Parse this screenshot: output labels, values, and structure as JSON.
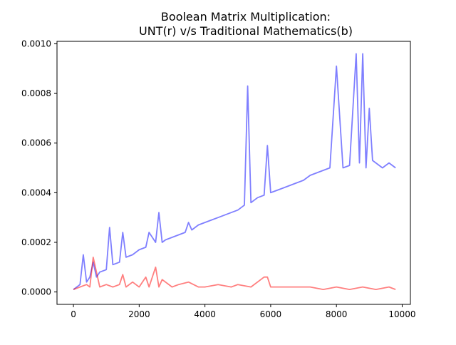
{
  "chart_data": {
    "type": "line",
    "title": "Boolean Matrix Multiplication:\nUNT(r) v/s Traditional Mathematics(b)",
    "xlabel": "",
    "ylabel": "",
    "xlim": [
      -500,
      10250
    ],
    "ylim": [
      -5e-05,
      0.00101
    ],
    "x_ticks": [
      0,
      2000,
      4000,
      6000,
      8000,
      10000
    ],
    "x_tick_labels": [
      "0",
      "2000",
      "4000",
      "6000",
      "8000",
      "10000"
    ],
    "y_ticks": [
      0.0,
      0.0002,
      0.0004,
      0.0006,
      0.0008,
      0.001
    ],
    "y_tick_labels": [
      "0.0000",
      "0.0002",
      "0.0004",
      "0.0006",
      "0.0008",
      "0.0010"
    ],
    "grid": false,
    "legend": "none",
    "series": [
      {
        "color": "#0000ff",
        "opacity": 0.5,
        "x": [
          0,
          200,
          300,
          400,
          500,
          600,
          700,
          800,
          1000,
          1100,
          1200,
          1400,
          1500,
          1600,
          1800,
          2000,
          2200,
          2300,
          2500,
          2600,
          2700,
          2800,
          3000,
          3200,
          3400,
          3500,
          3600,
          3800,
          4000,
          4200,
          4400,
          4600,
          4800,
          5000,
          5200,
          5300,
          5400,
          5500,
          5600,
          5800,
          5900,
          6000,
          6200,
          6400,
          6600,
          6800,
          7000,
          7200,
          7400,
          7600,
          7800,
          8000,
          8200,
          8400,
          8600,
          8700,
          8800,
          8900,
          9000,
          9100,
          9200,
          9400,
          9600,
          9800
        ],
        "y": [
          1e-05,
          3e-05,
          0.00015,
          4e-05,
          6e-05,
          0.00012,
          6e-05,
          8e-05,
          9e-05,
          0.00026,
          0.00011,
          0.00012,
          0.00024,
          0.00014,
          0.00015,
          0.00017,
          0.00018,
          0.00024,
          0.0002,
          0.00032,
          0.0002,
          0.00021,
          0.00022,
          0.00023,
          0.00024,
          0.00028,
          0.00025,
          0.00027,
          0.00028,
          0.00029,
          0.0003,
          0.00031,
          0.00032,
          0.00033,
          0.00035,
          0.00083,
          0.00036,
          0.00037,
          0.00038,
          0.00039,
          0.00059,
          0.0004,
          0.00041,
          0.00042,
          0.00043,
          0.00044,
          0.00045,
          0.00047,
          0.00048,
          0.00049,
          0.0005,
          0.00091,
          0.0005,
          0.00051,
          0.00096,
          0.00052,
          0.00096,
          0.0005,
          0.00074,
          0.00053,
          0.00052,
          0.0005,
          0.00052,
          0.0005
        ]
      },
      {
        "color": "#ff0000",
        "opacity": 0.5,
        "x": [
          0,
          200,
          400,
          500,
          600,
          800,
          1000,
          1200,
          1400,
          1500,
          1600,
          1800,
          2000,
          2200,
          2300,
          2500,
          2600,
          2700,
          3000,
          3200,
          3500,
          3800,
          4000,
          4400,
          4800,
          5000,
          5400,
          5800,
          5900,
          6000,
          6400,
          6800,
          7200,
          7600,
          8000,
          8400,
          8800,
          9200,
          9600,
          9800
        ],
        "y": [
          1e-05,
          2e-05,
          3e-05,
          2e-05,
          0.00014,
          2e-05,
          3e-05,
          2e-05,
          3e-05,
          7e-05,
          2e-05,
          4e-05,
          2e-05,
          6e-05,
          2e-05,
          0.0001,
          2e-05,
          5e-05,
          2e-05,
          3e-05,
          4e-05,
          2e-05,
          2e-05,
          3e-05,
          2e-05,
          3e-05,
          2e-05,
          6e-05,
          6e-05,
          2e-05,
          2e-05,
          2e-05,
          2e-05,
          1e-05,
          2e-05,
          1e-05,
          2e-05,
          1e-05,
          2e-05,
          1e-05
        ]
      }
    ]
  }
}
